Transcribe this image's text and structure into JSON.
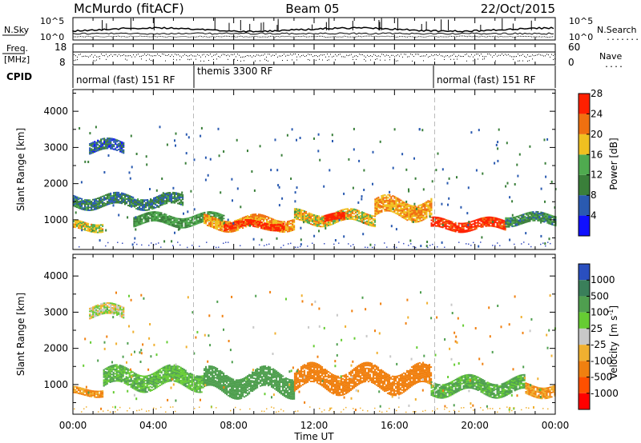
{
  "header": {
    "station": "McMurdo (fitACF)",
    "beam": "Beam 05",
    "date": "22/Oct/2015"
  },
  "top_panel": {
    "left_label": "N.Sky",
    "left_ticks": [
      "10^5",
      "10^0"
    ],
    "right_ticks": [
      "10^5",
      "10^0"
    ],
    "right_label": "N.Search",
    "right_dots": "........"
  },
  "freq_panel": {
    "label_line1": "Freq.",
    "label_line2": "[MHz]",
    "left_ticks": [
      "18",
      "8"
    ],
    "right_ticks": [
      "60",
      "0"
    ],
    "right_label": "Nave",
    "right_dots": "...."
  },
  "cpid": {
    "label": "CPID",
    "segments": [
      {
        "text": "normal (fast) 151 RF",
        "start_hour": 0,
        "end_hour": 6
      },
      {
        "text": "themis 3300 RF",
        "start_hour": 6,
        "end_hour": 18
      },
      {
        "text": "normal (fast) 151 RF",
        "start_hour": 18,
        "end_hour": 24
      }
    ]
  },
  "x_axis": {
    "label": "Time UT",
    "ticks": [
      "00:00",
      "04:00",
      "08:00",
      "12:00",
      "16:00",
      "20:00",
      "00:00"
    ],
    "range_hours": [
      0,
      24
    ],
    "tick_hours": [
      0,
      4,
      8,
      12,
      16,
      20,
      24
    ]
  },
  "y_axis": {
    "label": "Slant Range [km]",
    "ticks": [
      "1000",
      "2000",
      "3000",
      "4000"
    ],
    "tick_values": [
      1000,
      2000,
      3000,
      4000
    ],
    "range": [
      180,
      4600
    ]
  },
  "power_colorbar": {
    "label": "Power [dB]",
    "ticks": [
      "4",
      "8",
      "12",
      "16",
      "20",
      "24",
      "28"
    ],
    "colors": [
      "#1010ff",
      "#2a5ab0",
      "#3a7f3a",
      "#4faa4f",
      "#f0c020",
      "#f07010",
      "#ff2000"
    ]
  },
  "velocity_colorbar": {
    "label": "Velocity",
    "unit_main": "[m s",
    "unit_sup": "-1",
    "unit_end": "]",
    "ticks": [
      "1000",
      "500",
      "100",
      "25",
      "-25",
      "-100",
      "-500",
      "-1000"
    ],
    "colors": [
      "#2a4fbf",
      "#3a7f5a",
      "#4f9f4f",
      "#66cc33",
      "#c8c8c8",
      "#f0b030",
      "#f08010",
      "#ff5000",
      "#ff0000"
    ]
  },
  "chart_data": {
    "type": "heatmap",
    "title": "McMurdo (fitACF) Beam 05 22/Oct/2015",
    "xlabel": "Time UT",
    "ylabel": "Slant Range [km]",
    "xlim": [
      0,
      24
    ],
    "ylim": [
      180,
      4600
    ],
    "panels": [
      {
        "name": "Power [dB]",
        "bands": [
          {
            "from_hour": 0.0,
            "to_hour": 1.5,
            "center_km": 820,
            "width_km": 220,
            "value": 17
          },
          {
            "from_hour": 0.0,
            "to_hour": 5.5,
            "center_km": 1500,
            "width_km": 300,
            "value": 9
          },
          {
            "from_hour": 0.8,
            "to_hour": 2.5,
            "center_km": 3000,
            "width_km": 300,
            "value": 6
          },
          {
            "from_hour": 3.0,
            "to_hour": 7.5,
            "center_km": 1000,
            "width_km": 280,
            "value": 12
          },
          {
            "from_hour": 6.5,
            "to_hour": 11.0,
            "center_km": 900,
            "width_km": 300,
            "value": 20
          },
          {
            "from_hour": 7.5,
            "to_hour": 10.5,
            "center_km": 850,
            "width_km": 200,
            "value": 26
          },
          {
            "from_hour": 11.0,
            "to_hour": 15.0,
            "center_km": 1050,
            "width_km": 300,
            "value": 18
          },
          {
            "from_hour": 12.5,
            "to_hour": 13.5,
            "center_km": 1050,
            "width_km": 200,
            "value": 27
          },
          {
            "from_hour": 15.0,
            "to_hour": 17.8,
            "center_km": 1300,
            "width_km": 450,
            "value": 20
          },
          {
            "from_hour": 17.8,
            "to_hour": 21.5,
            "center_km": 850,
            "width_km": 250,
            "value": 26
          },
          {
            "from_hour": 21.5,
            "to_hour": 24.0,
            "center_km": 1000,
            "width_km": 250,
            "value": 10
          }
        ]
      },
      {
        "name": "Velocity [m s-1]",
        "bands": [
          {
            "from_hour": 0.0,
            "to_hour": 1.5,
            "center_km": 800,
            "width_km": 200,
            "value": -100
          },
          {
            "from_hour": 1.5,
            "to_hour": 6.5,
            "center_km": 1150,
            "width_km": 450,
            "value": 100
          },
          {
            "from_hour": 0.8,
            "to_hour": 2.5,
            "center_km": 3000,
            "width_km": 300,
            "value": 0
          },
          {
            "from_hour": 6.5,
            "to_hour": 11.0,
            "center_km": 1050,
            "width_km": 550,
            "value": 300
          },
          {
            "from_hour": 11.0,
            "to_hour": 17.8,
            "center_km": 1150,
            "width_km": 550,
            "value": -300
          },
          {
            "from_hour": 17.8,
            "to_hour": 22.5,
            "center_km": 950,
            "width_km": 400,
            "value": 120
          },
          {
            "from_hour": 22.5,
            "to_hour": 24.0,
            "center_km": 850,
            "width_km": 300,
            "value": -100
          }
        ]
      }
    ]
  }
}
